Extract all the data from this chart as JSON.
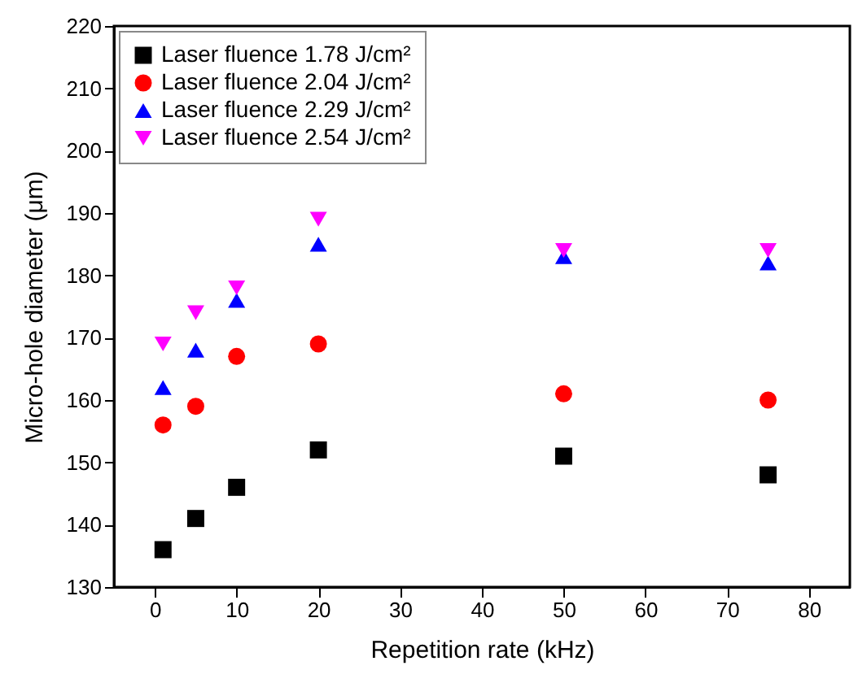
{
  "chart_data": {
    "type": "scatter",
    "xlabel": "Repetition rate (kHz)",
    "ylabel": "Micro-hole diameter (μm)",
    "x": [
      1,
      5,
      10,
      20,
      50,
      75
    ],
    "series": [
      {
        "name": "Laser fluence 1.78 J/cm²",
        "color": "#000000",
        "marker": "square",
        "values": [
          136,
          141,
          146,
          152,
          151,
          148
        ]
      },
      {
        "name": "Laser fluence 2.04 J/cm²",
        "color": "#ff0000",
        "marker": "circle",
        "values": [
          156,
          159,
          167,
          169,
          161,
          160
        ]
      },
      {
        "name": "Laser fluence 2.29 J/cm²",
        "color": "#0000ff",
        "marker": "triangle",
        "values": [
          162,
          168,
          176,
          185,
          183,
          182
        ]
      },
      {
        "name": "Laser fluence 2.54 J/cm²",
        "color": "#ff00ff",
        "marker": "triangle-down",
        "values": [
          169,
          174,
          178,
          189,
          184,
          184
        ]
      }
    ],
    "xlim": [
      -5,
      85
    ],
    "xticks": [
      0,
      10,
      20,
      30,
      40,
      50,
      60,
      70,
      80
    ],
    "ylim": [
      130,
      220
    ],
    "yticks": [
      130,
      140,
      150,
      160,
      170,
      180,
      190,
      200,
      210,
      220
    ],
    "grid": false,
    "legend": "top left"
  }
}
